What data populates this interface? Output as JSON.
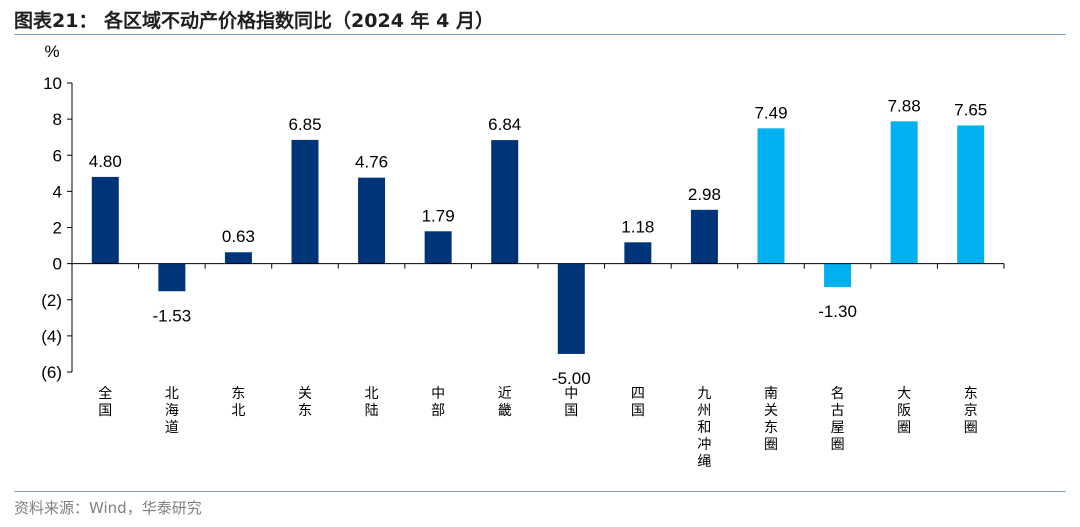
{
  "header": {
    "title": "图表21：  各区域不动产价格指数同比（2024 年 4 月）"
  },
  "footer": {
    "source": "资料来源：Wind，华泰研究"
  },
  "colors": {
    "dark_bar": "#003478",
    "light_bar": "#00b0f0",
    "axis": "#000000",
    "rule": "#7fa3c8"
  },
  "chart_data": {
    "type": "bar",
    "ylabel": "%",
    "ylim": [
      -6,
      10
    ],
    "yticks": [
      10,
      8,
      6,
      4,
      2,
      0,
      -2,
      -4,
      -6
    ],
    "ytick_labels": [
      "10",
      "8",
      "6",
      "4",
      "2",
      "0",
      "(2)",
      "(4)",
      "(6)"
    ],
    "categories": [
      "全国",
      "北海道",
      "东北",
      "关东",
      "北陆",
      "中部",
      "近畿",
      "中国",
      "四国",
      "九州和冲绳",
      "南关东圈",
      "名古屋圈",
      "大阪圈",
      "东京圈"
    ],
    "values": [
      4.8,
      -1.53,
      0.63,
      6.85,
      4.76,
      1.79,
      6.84,
      -5.0,
      1.18,
      2.98,
      7.49,
      -1.3,
      7.88,
      7.65
    ],
    "value_labels": [
      "4.80",
      "-1.53",
      "0.63",
      "6.85",
      "4.76",
      "1.79",
      "6.84",
      "-5.00",
      "1.18",
      "2.98",
      "7.49",
      "-1.30",
      "7.88",
      "7.65"
    ],
    "bar_colors": [
      "dark",
      "dark",
      "dark",
      "dark",
      "dark",
      "dark",
      "dark",
      "dark",
      "dark",
      "dark",
      "light",
      "light",
      "light",
      "light"
    ],
    "grid": false,
    "legend": "none"
  }
}
